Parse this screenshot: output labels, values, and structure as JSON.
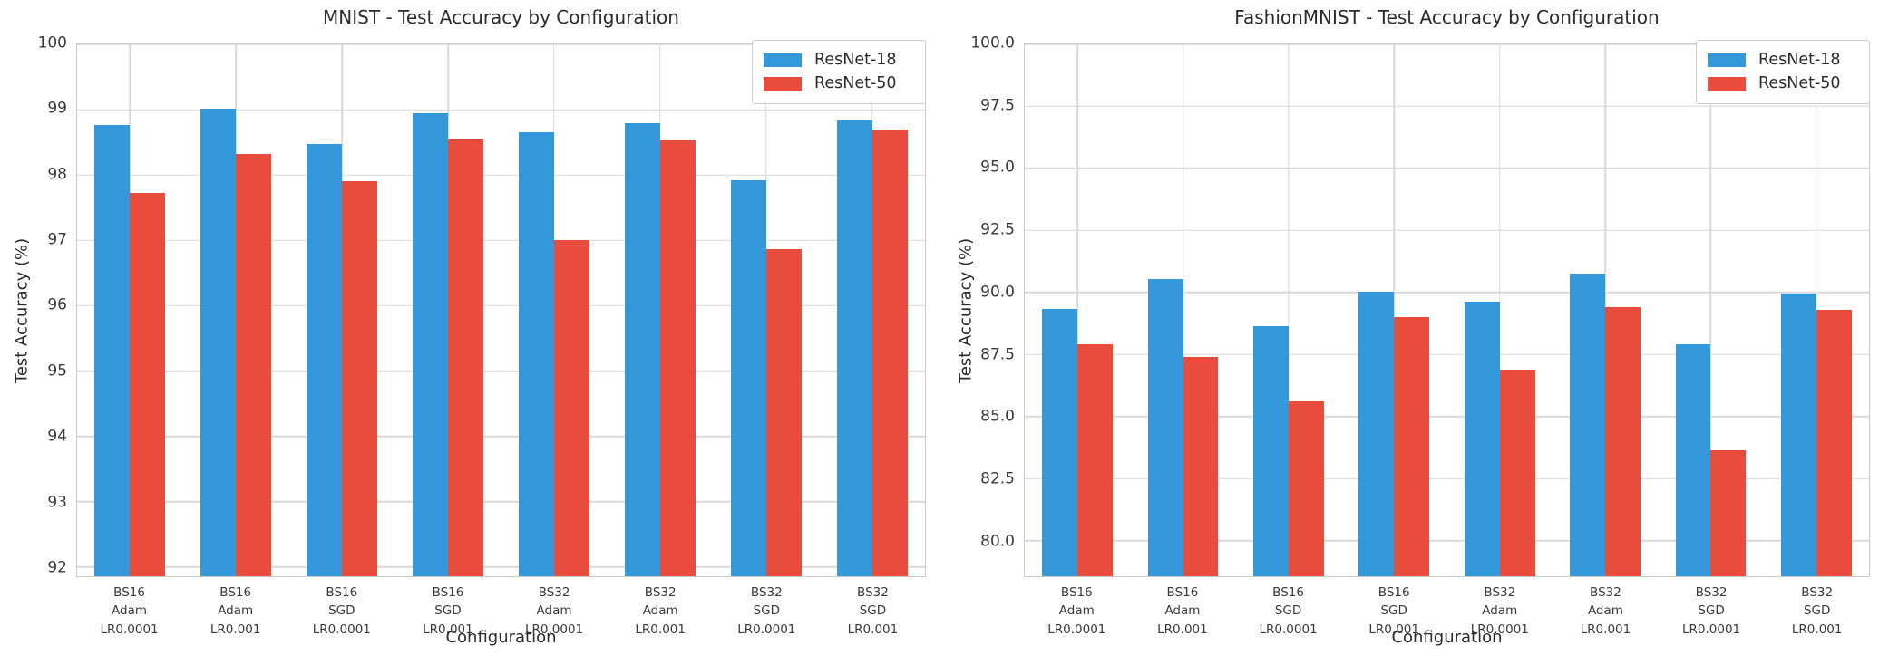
{
  "figure": {
    "background": "#ffffff",
    "text_color": "#2b2b2b",
    "grid_color": "#d9d9d9",
    "spine_color": "#c9c9c9"
  },
  "chart_data": [
    {
      "type": "bar",
      "title": "MNIST - Test Accuracy by Configuration",
      "xlabel": "Configuration",
      "ylabel": "Test Accuracy (%)",
      "categories": [
        [
          "BS16",
          "Adam",
          "LR0.0001"
        ],
        [
          "BS16",
          "Adam",
          "LR0.001"
        ],
        [
          "BS16",
          "SGD",
          "LR0.0001"
        ],
        [
          "BS16",
          "SGD",
          "LR0.001"
        ],
        [
          "BS32",
          "Adam",
          "LR0.0001"
        ],
        [
          "BS32",
          "Adam",
          "LR0.001"
        ],
        [
          "BS32",
          "SGD",
          "LR0.0001"
        ],
        [
          "BS32",
          "SGD",
          "LR0.001"
        ]
      ],
      "series": [
        {
          "name": "ResNet-18",
          "color": "#3498db",
          "values": [
            98.77,
            99.02,
            98.48,
            98.95,
            98.66,
            98.79,
            97.92,
            98.83
          ]
        },
        {
          "name": "ResNet-50",
          "color": "#e74c3c",
          "values": [
            97.73,
            98.32,
            97.9,
            98.56,
            97.01,
            98.54,
            96.86,
            98.7
          ]
        }
      ],
      "ylim": [
        91.86,
        100
      ],
      "yticks": [
        92,
        93,
        94,
        95,
        96,
        97,
        98,
        99,
        100
      ],
      "ytick_labels": [
        "92",
        "93",
        "94",
        "95",
        "96",
        "97",
        "98",
        "99",
        "100"
      ],
      "grid": true,
      "legend_position": "upper-right"
    },
    {
      "type": "bar",
      "title": "FashionMNIST - Test Accuracy by Configuration",
      "xlabel": "Configuration",
      "ylabel": "Test Accuracy (%)",
      "categories": [
        [
          "BS16",
          "Adam",
          "LR0.0001"
        ],
        [
          "BS16",
          "Adam",
          "LR0.001"
        ],
        [
          "BS16",
          "SGD",
          "LR0.0001"
        ],
        [
          "BS16",
          "SGD",
          "LR0.001"
        ],
        [
          "BS32",
          "Adam",
          "LR0.0001"
        ],
        [
          "BS32",
          "Adam",
          "LR0.001"
        ],
        [
          "BS32",
          "SGD",
          "LR0.0001"
        ],
        [
          "BS32",
          "SGD",
          "LR0.001"
        ]
      ],
      "series": [
        {
          "name": "ResNet-18",
          "color": "#3498db",
          "values": [
            89.35,
            90.55,
            88.65,
            90.05,
            89.65,
            90.75,
            87.9,
            89.95
          ]
        },
        {
          "name": "ResNet-50",
          "color": "#e74c3c",
          "values": [
            87.9,
            87.4,
            85.6,
            89.0,
            86.9,
            89.4,
            83.65,
            89.3
          ]
        }
      ],
      "ylim": [
        78.57,
        100
      ],
      "yticks": [
        80.0,
        82.5,
        85.0,
        87.5,
        90.0,
        92.5,
        95.0,
        97.5,
        100.0
      ],
      "ytick_labels": [
        "80.0",
        "82.5",
        "85.0",
        "87.5",
        "90.0",
        "92.5",
        "95.0",
        "97.5",
        "100.0"
      ],
      "grid": true,
      "legend_position": "upper-right"
    }
  ]
}
